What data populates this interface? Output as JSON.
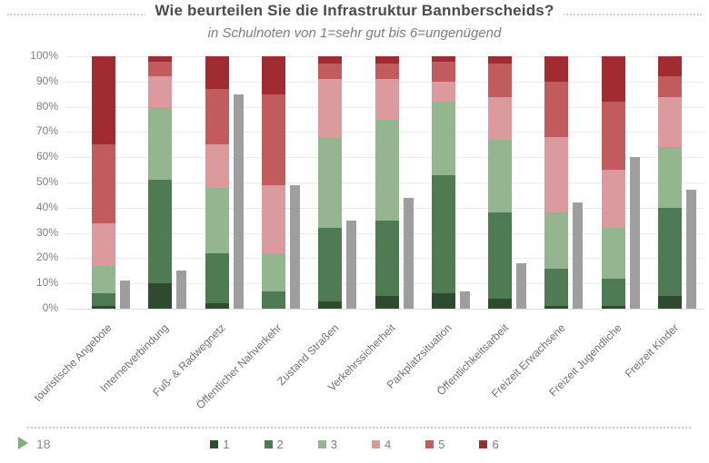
{
  "slide": {
    "title": "Wie beurteilen Sie die Infrastruktur Bannberscheids?",
    "subtitle": "in Schulnoten von 1=sehr gut bis 6=ungenügend",
    "slide_number": "18"
  },
  "chart_data": {
    "type": "bar",
    "variant": "100%-stacked-column",
    "title": "Wie beurteilen Sie die Infrastruktur Bannberscheids?",
    "subtitle": "in Schulnoten von 1=sehr gut bis 6=ungenügend",
    "grid": true,
    "ylim": [
      0,
      100
    ],
    "y_ticks": [
      "0%",
      "10%",
      "20%",
      "30%",
      "40%",
      "50%",
      "60%",
      "70%",
      "80%",
      "90%",
      "100%"
    ],
    "legend_position": "bottom",
    "legend": [
      "1",
      "2",
      "3",
      "4",
      "5",
      "6"
    ],
    "categories": [
      "touristische Angebote",
      "Internetverbindung",
      "Fuß- & Radwegnetz",
      "Öffentlicher Nahverkehr",
      "Zustand Straßen",
      "Verkehrssicherheit",
      "Parkplatzsituation",
      "Öffentlichkeitsarbeit",
      "Freizeit Erwachsene",
      "Freizeit Jugendliche",
      "Freizeit Kinder"
    ],
    "series": [
      {
        "name": "1",
        "color": "#2e4b30",
        "values": [
          1,
          10,
          2,
          0,
          3,
          5,
          6,
          4,
          1,
          1,
          5
        ]
      },
      {
        "name": "2",
        "color": "#4e7b51",
        "values": [
          5,
          41,
          20,
          7,
          29,
          30,
          47,
          34,
          15,
          11,
          35
        ]
      },
      {
        "name": "3",
        "color": "#93b68e",
        "values": [
          11,
          29,
          26,
          15,
          36,
          40,
          29,
          29,
          22,
          20,
          24
        ]
      },
      {
        "name": "4",
        "color": "#db9b9e",
        "values": [
          17,
          12,
          17,
          27,
          23,
          16,
          8,
          17,
          30,
          23,
          20
        ]
      },
      {
        "name": "5",
        "color": "#c25b5e",
        "values": [
          31,
          6,
          22,
          36,
          6,
          6,
          8,
          13,
          22,
          27,
          8
        ]
      },
      {
        "name": "6",
        "color": "#a02b30",
        "values": [
          35,
          2,
          13,
          15,
          3,
          3,
          2,
          3,
          10,
          18,
          8
        ]
      }
    ],
    "side_series": {
      "in_legend": false,
      "color": "#9e9e9e",
      "values": [
        11,
        15,
        85,
        49,
        35,
        44,
        7,
        18,
        42,
        60,
        47
      ]
    },
    "colors": {
      "gridline": "#ebebeb",
      "axis_text": "#7f7f7f",
      "category_text": "#6f6f6f",
      "title_text": "#4c4c4c",
      "subtitle_text": "#7d7d7d",
      "title_dotted_rule": "#c8d2d4",
      "footer_dotted_rule": "#c6c6c6",
      "footer_arrow": "#7fae7f"
    }
  }
}
